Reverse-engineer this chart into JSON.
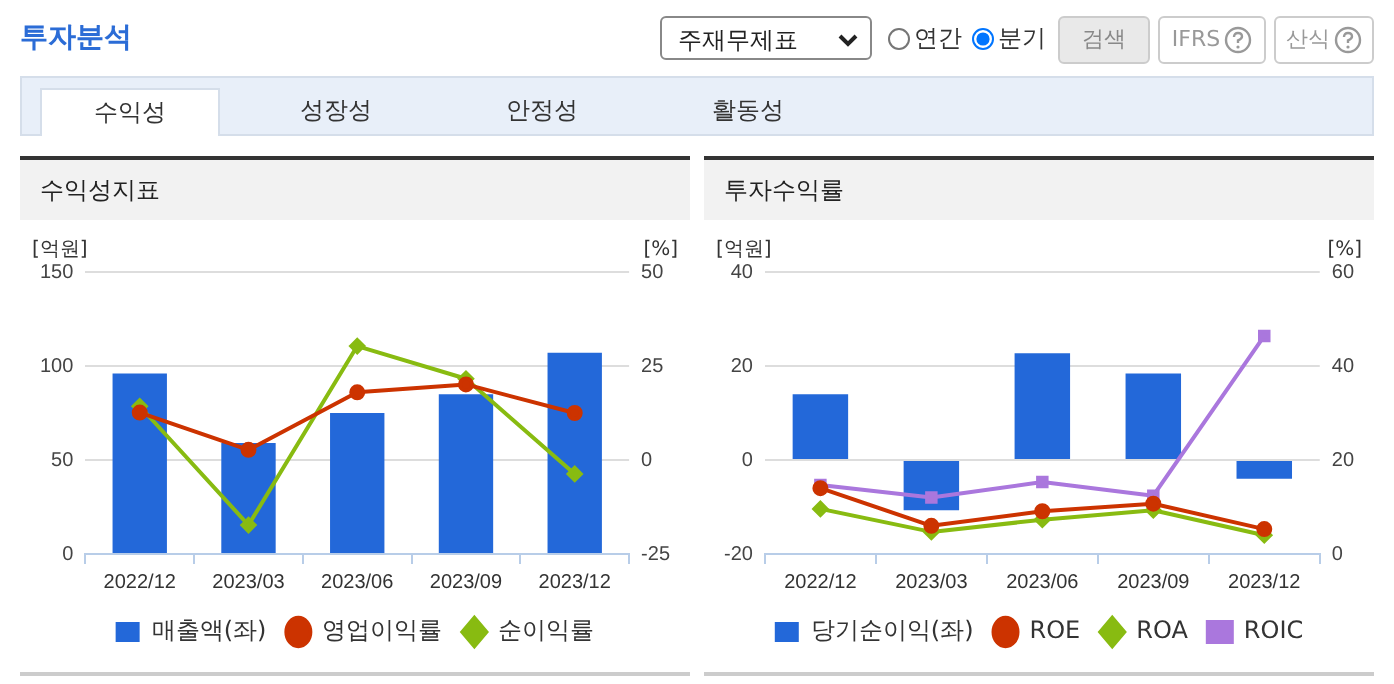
{
  "chart_data": [
    {
      "type": "other",
      "title": "투자분석",
      "annotations": [
        "주재무제표",
        "연간",
        "분기",
        "검색",
        "IFRS",
        "산식",
        "수익성",
        "성장성",
        "안정성",
        "활동성"
      ]
    },
    {
      "type": "bar",
      "title": "수익성지표",
      "ylabel": "[억원]",
      "y2label": "[%]",
      "categories": [
        "2022/12",
        "2023/03",
        "2023/06",
        "2023/09",
        "2023/12"
      ],
      "ylim": [
        0,
        150
      ],
      "yticks": [
        0,
        50,
        100,
        150
      ],
      "y2lim": [
        -25,
        50
      ],
      "y2ticks": [
        -25,
        0,
        25,
        50
      ],
      "grid": "y",
      "legend": "bottom",
      "series": [
        {
          "name": "매출액(좌)",
          "type": "bar",
          "color": "#2368d9",
          "values": [
            96,
            59,
            75,
            85,
            107
          ]
        },
        {
          "name": "영업이익률",
          "type": "line",
          "axis": "y2",
          "marker": "circle",
          "color": "#cc3300",
          "values": [
            12.6,
            2.7,
            18,
            20.1,
            12.5
          ]
        },
        {
          "name": "순이익률",
          "type": "line",
          "axis": "y2",
          "marker": "diamond",
          "color": "#88bb11",
          "values": [
            14.3,
            -17.3,
            30.3,
            21.6,
            -3.7
          ]
        }
      ]
    },
    {
      "type": "bar",
      "title": "투자수익률",
      "ylabel": "[억원]",
      "y2label": "[%]",
      "categories": [
        "2022/12",
        "2023/03",
        "2023/06",
        "2023/09",
        "2023/12"
      ],
      "ylim": [
        -20,
        40
      ],
      "yticks": [
        -20,
        0,
        20,
        40
      ],
      "y2lim": [
        0,
        60
      ],
      "y2ticks": [
        0,
        20,
        40,
        60
      ],
      "grid": "y",
      "legend": "bottom",
      "series": [
        {
          "name": "당기순이익(좌)",
          "type": "bar",
          "color": "#2368d9",
          "values": [
            14,
            -10.7,
            22.7,
            18.4,
            -4
          ]
        },
        {
          "name": "ROE",
          "type": "line",
          "axis": "y2",
          "marker": "circle",
          "color": "#cc3300",
          "values": [
            14,
            6,
            9.1,
            10.7,
            5.3
          ]
        },
        {
          "name": "ROA",
          "type": "line",
          "axis": "y2",
          "marker": "diamond",
          "color": "#88bb11",
          "values": [
            9.6,
            4.7,
            7.3,
            9.3,
            4
          ]
        },
        {
          "name": "ROIC",
          "type": "line",
          "axis": "y2",
          "marker": "square",
          "color": "#aa77dd",
          "values": [
            14.7,
            12,
            15.3,
            12.4,
            46.4
          ]
        }
      ]
    }
  ]
}
